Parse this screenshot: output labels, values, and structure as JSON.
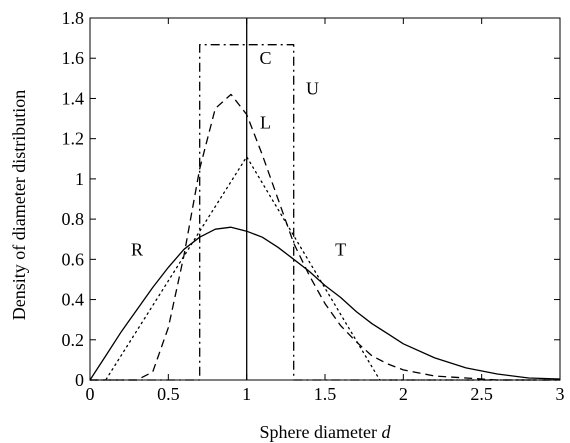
{
  "chart_data": {
    "type": "line",
    "xlabel": "Sphere diameter",
    "xlabel_var": "d",
    "ylabel": "Density of diameter distribution",
    "xlim": [
      0,
      3
    ],
    "ylim": [
      0,
      1.8
    ],
    "xticks": [
      0,
      0.5,
      1,
      1.5,
      2,
      2.5,
      3
    ],
    "xtick_labels": [
      "0",
      "0.5",
      "1",
      "1.5",
      "2",
      "2.5",
      "3"
    ],
    "yticks": [
      0,
      0.2,
      0.4,
      0.6,
      0.8,
      1,
      1.2,
      1.4,
      1.6,
      1.8
    ],
    "ytick_labels": [
      "0",
      "0.2",
      "0.4",
      "0.6",
      "0.8",
      "1",
      "1.2",
      "1.4",
      "1.6",
      "1.8"
    ],
    "grid": false,
    "legend": "none",
    "series": [
      {
        "name": "C",
        "style": "solid",
        "x": [
          1,
          1
        ],
        "y": [
          0,
          1.8
        ],
        "label_at": [
          1.12,
          1.6
        ]
      },
      {
        "name": "U",
        "style": "dashdot",
        "x": [
          0,
          0.7,
          0.7,
          1.3,
          1.3,
          3
        ],
        "y": [
          0,
          0,
          1.667,
          1.667,
          0,
          0
        ],
        "label_at": [
          1.42,
          1.45
        ]
      },
      {
        "name": "L",
        "style": "dashed",
        "x": [
          0,
          0.3,
          0.4,
          0.5,
          0.6,
          0.7,
          0.8,
          0.9,
          1.0,
          1.1,
          1.2,
          1.3,
          1.4,
          1.5,
          1.6,
          1.7,
          1.8,
          1.9,
          2.0,
          2.2,
          2.4,
          2.6,
          3.0
        ],
        "y": [
          0,
          0,
          0.04,
          0.26,
          0.62,
          1.05,
          1.35,
          1.42,
          1.32,
          1.12,
          0.9,
          0.68,
          0.52,
          0.38,
          0.27,
          0.19,
          0.12,
          0.08,
          0.05,
          0.02,
          0.01,
          0.0,
          0.0
        ],
        "label_at": [
          1.12,
          1.28
        ]
      },
      {
        "name": "T",
        "style": "dotted",
        "x": [
          0,
          0.1,
          1.0,
          1.85,
          1.9,
          3.0
        ],
        "y": [
          0,
          0,
          1.11,
          0,
          0,
          0
        ],
        "label_at": [
          1.6,
          0.65
        ]
      },
      {
        "name": "R",
        "style": "solid",
        "x": [
          0,
          0.1,
          0.2,
          0.3,
          0.4,
          0.5,
          0.6,
          0.7,
          0.8,
          0.9,
          1.0,
          1.1,
          1.2,
          1.3,
          1.4,
          1.5,
          1.6,
          1.7,
          1.8,
          1.9,
          2.0,
          2.2,
          2.4,
          2.6,
          2.8,
          3.0
        ],
        "y": [
          0,
          0.12,
          0.24,
          0.35,
          0.46,
          0.56,
          0.65,
          0.71,
          0.75,
          0.76,
          0.74,
          0.71,
          0.66,
          0.6,
          0.54,
          0.47,
          0.41,
          0.34,
          0.28,
          0.23,
          0.18,
          0.11,
          0.06,
          0.03,
          0.01,
          0.005
        ],
        "label_at": [
          0.3,
          0.65
        ]
      }
    ]
  }
}
